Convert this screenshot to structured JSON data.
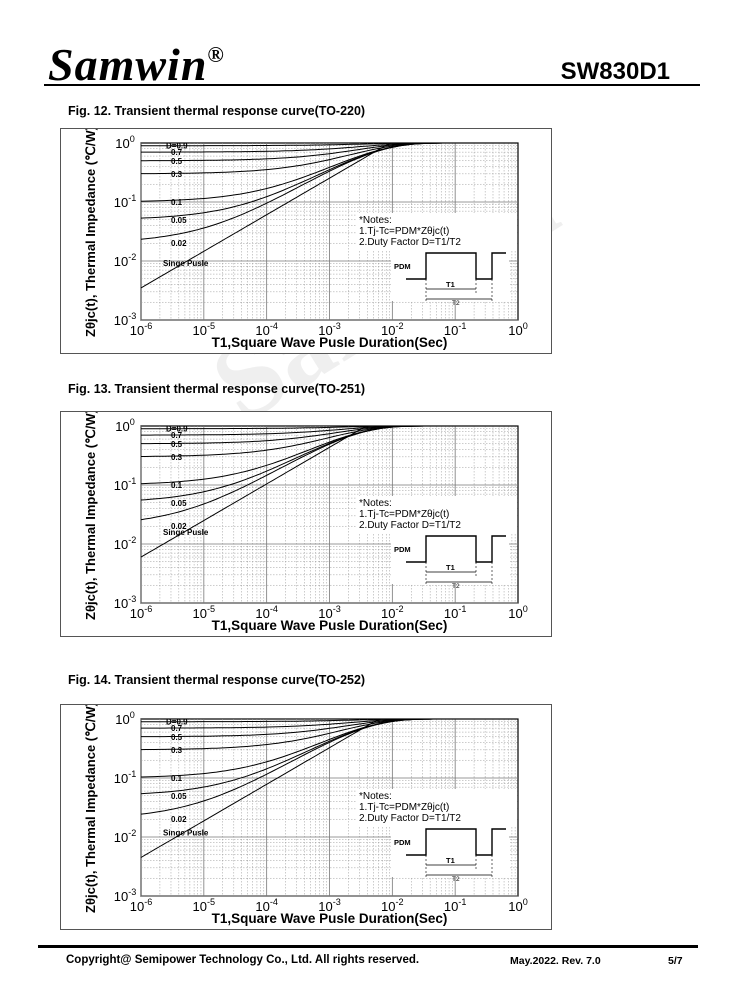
{
  "header": {
    "brand": "Samwin",
    "registered": "®",
    "part_number": "SW830D1"
  },
  "watermark": "Samwin",
  "figures": [
    {
      "caption": "Fig. 12. Transient thermal response curve(TO-220)"
    },
    {
      "caption": "Fig. 13. Transient thermal response curve(TO-251)"
    },
    {
      "caption": "Fig. 14. Transient thermal response curve(TO-252)"
    }
  ],
  "chart_data": [
    {
      "type": "line",
      "ylabel": "Zθjc(t), Thermal Impedance (℃/W)",
      "xlabel": "T1,Square Wave Pusle Duration(Sec)",
      "x_scale": "log",
      "y_scale": "log",
      "xlim": [
        1e-06,
        1
      ],
      "ylim": [
        0.001,
        1
      ],
      "x_tick_labels": [
        "10-6",
        "10-5",
        "10-4",
        "10-3",
        "10-2",
        "10-1",
        "100"
      ],
      "y_tick_labels": [
        "100",
        "10-1",
        "10-2",
        "10-3"
      ],
      "grid": true,
      "series": [
        {
          "name": "D=0.9",
          "start": 0.9
        },
        {
          "name": "0.7",
          "start": 0.7
        },
        {
          "name": "0.5",
          "start": 0.5
        },
        {
          "name": "0.3",
          "start": 0.3
        },
        {
          "name": "0.1",
          "start": 0.1
        },
        {
          "name": "0.05",
          "start": 0.05
        },
        {
          "name": "0.02",
          "start": 0.02
        },
        {
          "name": "Singe Pusle",
          "start": 0.0035
        }
      ],
      "notes": [
        "*Notes:",
        "1.Tj-Tc=PDM*Zθjc(t)",
        "2.Duty Factor D=T1/T2"
      ],
      "pulse_labels": {
        "pdm": "PDM",
        "t1": "T1",
        "t2": "T2"
      }
    },
    {
      "type": "line",
      "ylabel": "Zθjc(t), Thermal Impedance (℃/W)",
      "xlabel": "T1,Square Wave Pusle Duration(Sec)",
      "x_scale": "log",
      "y_scale": "log",
      "xlim": [
        1e-06,
        1
      ],
      "ylim": [
        0.001,
        1
      ],
      "x_tick_labels": [
        "10-6",
        "10-5",
        "10-4",
        "10-3",
        "10-2",
        "10-1",
        "100"
      ],
      "y_tick_labels": [
        "100",
        "10-1",
        "10-2",
        "10-3"
      ],
      "grid": true,
      "series": [
        {
          "name": "D=0.9",
          "start": 0.9
        },
        {
          "name": "0.7",
          "start": 0.7
        },
        {
          "name": "0.5",
          "start": 0.5
        },
        {
          "name": "0.3",
          "start": 0.3
        },
        {
          "name": "0.1",
          "start": 0.1
        },
        {
          "name": "0.05",
          "start": 0.05
        },
        {
          "name": "0.02",
          "start": 0.02
        },
        {
          "name": "Singe Pusle",
          "start": 0.006
        }
      ],
      "notes": [
        "*Notes:",
        "1.Tj-Tc=PDM*Zθjc(t)",
        "2.Duty Factor D=T1/T2"
      ],
      "pulse_labels": {
        "pdm": "PDM",
        "t1": "T1",
        "t2": "T2"
      }
    },
    {
      "type": "line",
      "ylabel": "Zθjc(t), Thermal Impedance (℃/W)",
      "xlabel": "T1,Square Wave Pusle Duration(Sec)",
      "x_scale": "log",
      "y_scale": "log",
      "xlim": [
        1e-06,
        1
      ],
      "ylim": [
        0.001,
        1
      ],
      "x_tick_labels": [
        "10-6",
        "10-5",
        "10-4",
        "10-3",
        "10-2",
        "10-1",
        "100"
      ],
      "y_tick_labels": [
        "100",
        "10-1",
        "10-2",
        "10-3"
      ],
      "grid": true,
      "series": [
        {
          "name": "D=0.9",
          "start": 0.9
        },
        {
          "name": "0.7",
          "start": 0.7
        },
        {
          "name": "0.5",
          "start": 0.5
        },
        {
          "name": "0.3",
          "start": 0.3
        },
        {
          "name": "0.1",
          "start": 0.1
        },
        {
          "name": "0.05",
          "start": 0.05
        },
        {
          "name": "0.02",
          "start": 0.02
        },
        {
          "name": "Singe Pusle",
          "start": 0.0045
        }
      ],
      "notes": [
        "*Notes:",
        "1.Tj-Tc=PDM*Zθjc(t)",
        "2.Duty Factor D=T1/T2"
      ],
      "pulse_labels": {
        "pdm": "PDM",
        "t1": "T1",
        "t2": "T2"
      }
    }
  ],
  "footer": {
    "copyright": "Copyright@ Semipower Technology Co., Ltd. All rights reserved.",
    "revision": "May.2022. Rev. 7.0",
    "page": "5/7"
  }
}
